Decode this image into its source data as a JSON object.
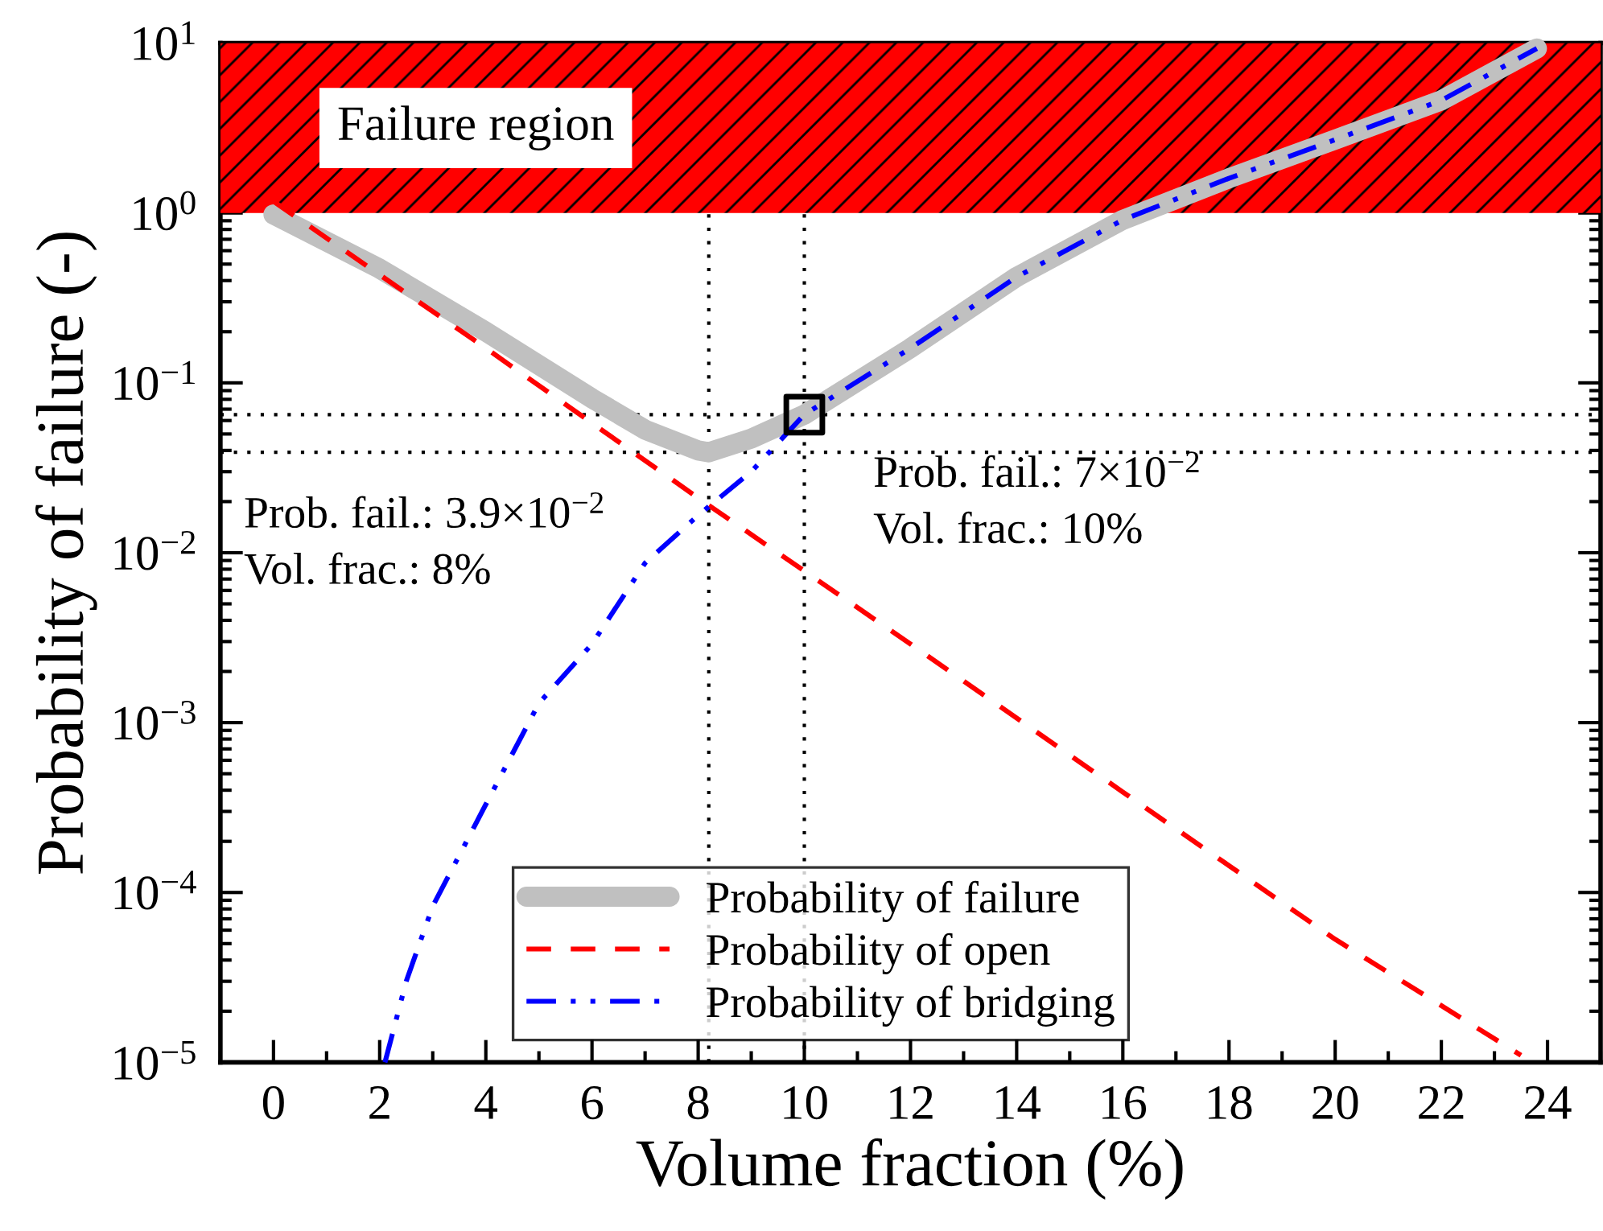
{
  "chart_data": {
    "type": "line",
    "xlabel": "Volume fraction (%)",
    "ylabel": "Probability of failure (-)",
    "xlim": [
      -1,
      25
    ],
    "xticks": [
      0,
      2,
      4,
      6,
      8,
      10,
      12,
      14,
      16,
      18,
      20,
      22,
      24
    ],
    "ylim": [
      1e-05,
      10
    ],
    "log": "y",
    "yticks": [
      {
        "value": 1e-05,
        "label": "10$^{−5}$"
      },
      {
        "value": 0.0001,
        "label": "10$^{−4}$"
      },
      {
        "value": 0.001,
        "label": "10$^{−3}$"
      },
      {
        "value": 0.01,
        "label": "10$^{−2}$"
      },
      {
        "value": 0.1,
        "label": "10$^{−1}$"
      },
      {
        "value": 1,
        "label": "10$^{0}$"
      },
      {
        "value": 10,
        "label": "10$^{1}$"
      }
    ],
    "legend": "bottom",
    "series": [
      {
        "name": "Probability of failure",
        "color": "#c0c0c0",
        "line_style": "solid",
        "x": [
          0,
          2,
          4,
          6,
          7,
          8,
          8.2,
          9,
          10,
          12,
          14,
          16,
          18,
          20,
          22,
          23.8
        ],
        "values": [
          0.98,
          0.47,
          0.2,
          0.081,
          0.053,
          0.04,
          0.039,
          0.047,
          0.065,
          0.16,
          0.42,
          0.91,
          1.6,
          2.7,
          4.6,
          9.3
        ]
      },
      {
        "name": "Probability of open",
        "color": "#ff0000",
        "line_style": "dashed",
        "x": [
          0,
          4,
          8,
          12,
          16,
          20,
          23.5
        ],
        "values": [
          1.17,
          0.16,
          0.021,
          0.0029,
          0.00039,
          5.3e-05,
          1.1e-05
        ]
      },
      {
        "name": "Probability of bridging",
        "color": "#0000ff",
        "line_style": "dashdotdot",
        "x": [
          2.1,
          2.5,
          3,
          4,
          5,
          6,
          7,
          8,
          9,
          10,
          12,
          14,
          16,
          18,
          20,
          22,
          23.8
        ],
        "values": [
          1e-05,
          3e-05,
          8.3e-05,
          0.00033,
          0.0013,
          0.0029,
          0.0087,
          0.0166,
          0.03,
          0.065,
          0.16,
          0.42,
          0.91,
          1.6,
          2.7,
          4.6,
          9.3
        ]
      },
      {
        "type": "scatter",
        "color": "#000000",
        "marker": "square",
        "x": [
          10
        ],
        "values": [
          0.065
        ]
      }
    ],
    "ref_lines": [
      {
        "axis": "x",
        "value": 8.2,
        "color": "#000000",
        "line_style": "dotted"
      },
      {
        "axis": "x",
        "value": 10,
        "color": "#000000",
        "line_style": "dotted"
      },
      {
        "axis": "y",
        "value": 0.039,
        "color": "#000000",
        "line_style": "dotted"
      },
      {
        "axis": "y",
        "value": 0.065,
        "color": "#000000",
        "line_style": "dotted"
      }
    ],
    "bands": [
      {
        "axis": "y",
        "from": 1,
        "to": 10,
        "label": "Failure region",
        "color": "#ff0000"
      }
    ],
    "annotations": [
      "Prob. fail.: 3.9×10$^{−2}$\nVol. frac.: 8%",
      "Prob. fail.: 7×10$^{−2}$\nVol. frac.: 10%"
    ]
  }
}
